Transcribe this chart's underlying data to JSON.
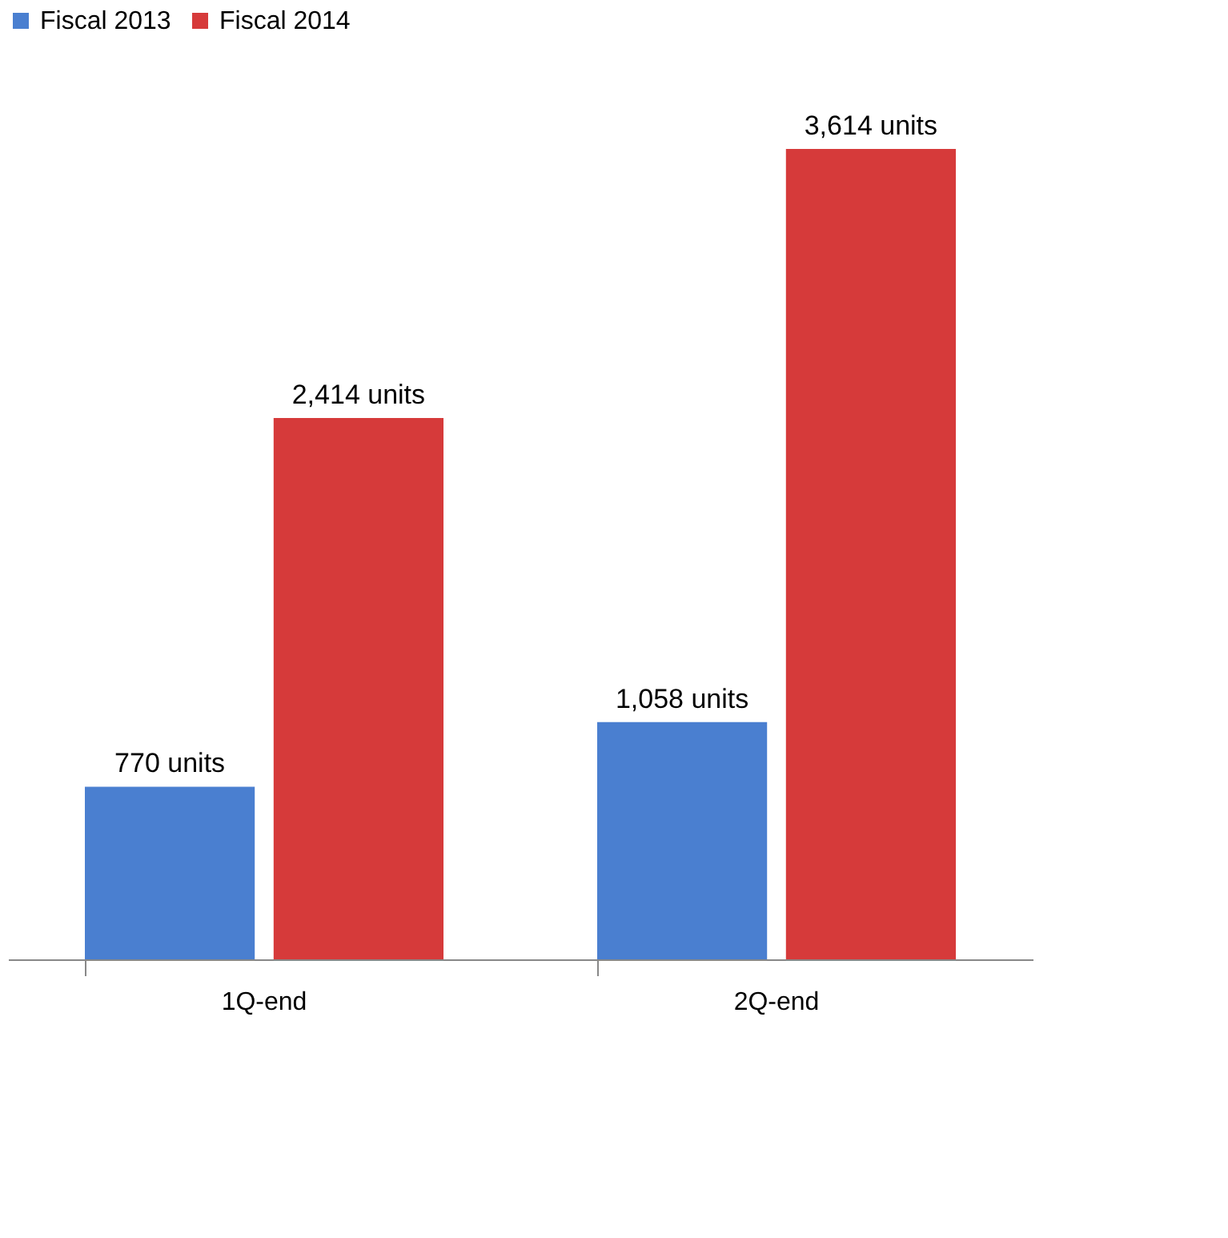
{
  "chart_data": {
    "type": "bar",
    "categories": [
      "1Q-end",
      "2Q-end"
    ],
    "series": [
      {
        "name": "Fiscal 2013",
        "color": "#4a7fd0",
        "values": [
          770,
          1058
        ],
        "value_labels": [
          "770 units",
          "1,058 units"
        ]
      },
      {
        "name": "Fiscal 2014",
        "color": "#d63a3a",
        "values": [
          2414,
          3614
        ],
        "value_labels": [
          "2,414 units",
          "3,614 units"
        ]
      }
    ],
    "legend": "top",
    "grid": false,
    "tick_labels": "x"
  }
}
